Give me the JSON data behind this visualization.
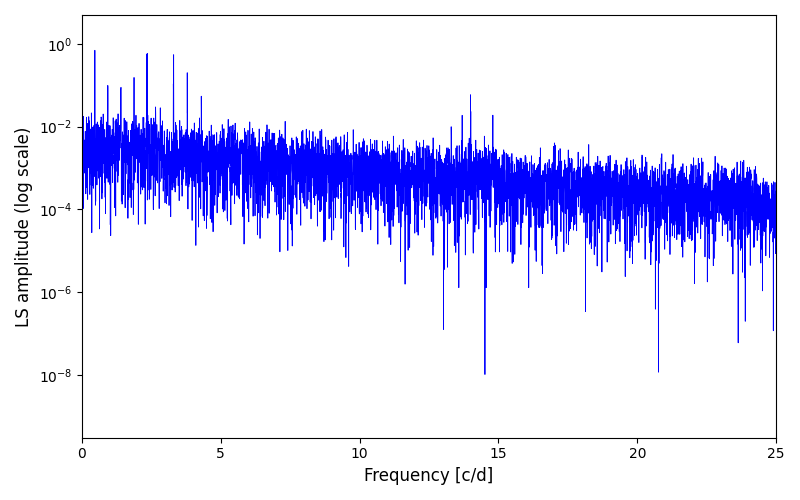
{
  "title": "",
  "xlabel": "Frequency [c/d]",
  "ylabel": "LS amplitude (log scale)",
  "line_color": "#0000FF",
  "line_width": 0.6,
  "xlim": [
    0,
    25
  ],
  "ylim_log": [
    3e-10,
    5.0
  ],
  "yscale": "log",
  "yticks": [
    1e-08,
    1e-06,
    0.0001,
    0.01,
    1.0
  ],
  "xticks": [
    0,
    5,
    10,
    15,
    20,
    25
  ],
  "freq_max": 25.0,
  "num_points": 5000,
  "seed": 42,
  "bg_color": "#ffffff",
  "figsize": [
    8.0,
    5.0
  ],
  "dpi": 100
}
